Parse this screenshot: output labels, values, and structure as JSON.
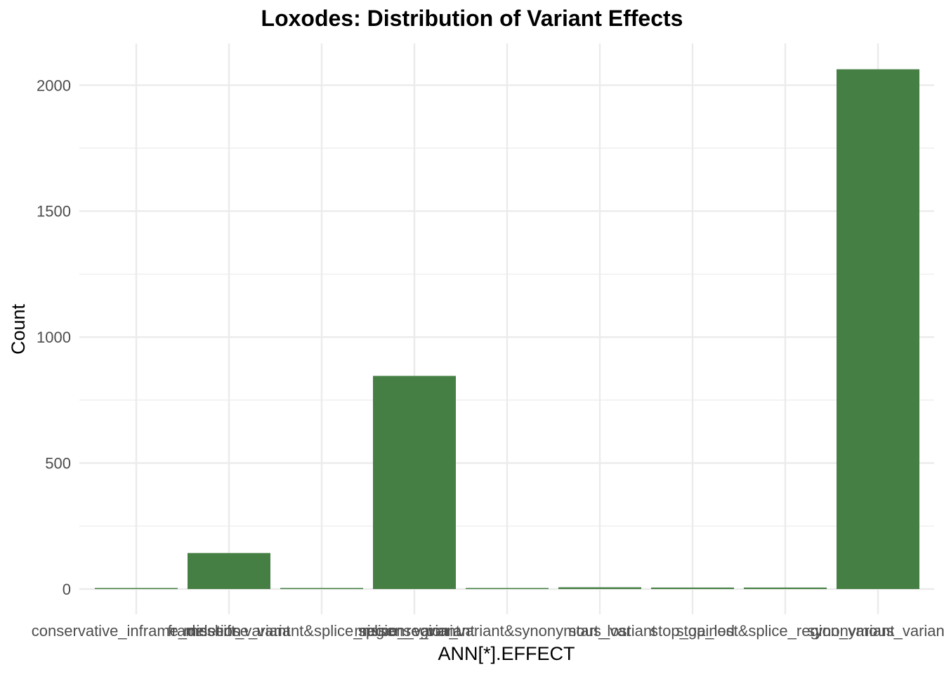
{
  "chart_data": {
    "type": "bar",
    "title": "Loxodes: Distribution of Variant Effects",
    "xlabel": "ANN[*].EFFECT",
    "ylabel": "Count",
    "categories": [
      "conservative_inframe_deletion",
      "frameshift_variant",
      "missense_variant&splice_region_variant",
      "missense_variant",
      "splice_region_variant&synonymous_variant",
      "start_lost",
      "stop_gained",
      "stop_lost&splice_region_variant",
      "synonymous_variant"
    ],
    "values": [
      3,
      143,
      1,
      846,
      2,
      7,
      6,
      6,
      2063
    ],
    "ylim": [
      0,
      2170
    ],
    "yticks": [
      0,
      500,
      1000,
      1500,
      2000
    ],
    "grid": true,
    "bar_color": "#467F44",
    "grid_color": "#EBEBEB"
  }
}
